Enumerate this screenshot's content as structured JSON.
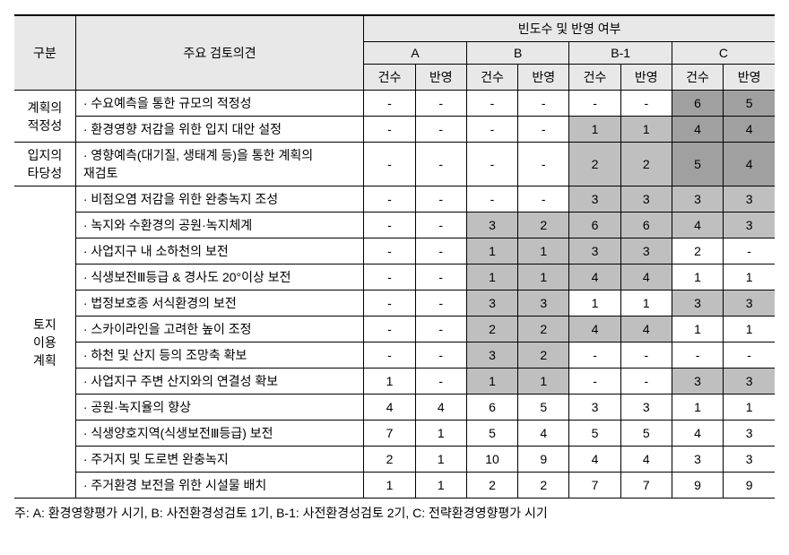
{
  "header": {
    "gubun": "구분",
    "opinion": "주요 검토의견",
    "freq_reflect": "빈도수 및 반영 여부",
    "groups": [
      "A",
      "B",
      "B-1",
      "C"
    ],
    "sub": [
      "건수",
      "반영"
    ]
  },
  "categories": [
    {
      "name": "계획의\n적정성",
      "rowspan": 2
    },
    {
      "name": "입지의\n타당성",
      "rowspan": 1
    },
    {
      "name": "토지\n이용\n계획",
      "rowspan": 12
    }
  ],
  "rows": [
    {
      "cat": 0,
      "label": "· 수요예측을 통한 규모의 적정성",
      "cells": [
        "-",
        "-",
        "-",
        "-",
        "-",
        "-",
        "6",
        "5"
      ],
      "shade": [
        0,
        0,
        0,
        0,
        0,
        0,
        2,
        2
      ]
    },
    {
      "cat": 0,
      "label": "· 환경영향 저감을 위한 입지 대안 설정",
      "cells": [
        "-",
        "-",
        "-",
        "-",
        "1",
        "1",
        "4",
        "4"
      ],
      "shade": [
        0,
        0,
        0,
        0,
        1,
        1,
        2,
        2
      ]
    },
    {
      "cat": 1,
      "label": "· 영향예측(대기질, 생태계 등)을 통한 계획의\n  재검토",
      "cells": [
        "-",
        "-",
        "-",
        "-",
        "2",
        "2",
        "5",
        "4"
      ],
      "shade": [
        0,
        0,
        0,
        0,
        1,
        1,
        2,
        2
      ]
    },
    {
      "cat": 2,
      "label": "· 비점오염 저감을 위한 완충녹지 조성",
      "cells": [
        "-",
        "-",
        "-",
        "-",
        "3",
        "3",
        "3",
        "3"
      ],
      "shade": [
        0,
        0,
        0,
        0,
        1,
        1,
        1,
        1
      ]
    },
    {
      "cat": 2,
      "label": "· 녹지와 수환경의 공원·녹지체계",
      "cells": [
        "-",
        "-",
        "3",
        "2",
        "6",
        "6",
        "4",
        "3"
      ],
      "shade": [
        0,
        0,
        1,
        1,
        1,
        1,
        1,
        1
      ]
    },
    {
      "cat": 2,
      "label": "· 사업지구 내 소하천의 보전",
      "cells": [
        "-",
        "-",
        "1",
        "1",
        "3",
        "3",
        "2",
        "-"
      ],
      "shade": [
        0,
        0,
        1,
        1,
        1,
        1,
        0,
        0
      ]
    },
    {
      "cat": 2,
      "label": "· 식생보전Ⅲ등급 & 경사도 20°이상 보전",
      "cells": [
        "-",
        "-",
        "1",
        "1",
        "4",
        "4",
        "1",
        "1"
      ],
      "shade": [
        0,
        0,
        1,
        1,
        1,
        1,
        0,
        0
      ]
    },
    {
      "cat": 2,
      "label": "· 법정보호종 서식환경의 보전",
      "cells": [
        "-",
        "-",
        "3",
        "3",
        "1",
        "1",
        "3",
        "3"
      ],
      "shade": [
        0,
        0,
        1,
        1,
        0,
        0,
        1,
        1
      ]
    },
    {
      "cat": 2,
      "label": "· 스카이라인을 고려한 높이 조정",
      "cells": [
        "-",
        "-",
        "2",
        "2",
        "4",
        "4",
        "1",
        "1"
      ],
      "shade": [
        0,
        0,
        1,
        1,
        1,
        1,
        0,
        0
      ]
    },
    {
      "cat": 2,
      "label": "· 하천 및 산지 등의 조망축 확보",
      "cells": [
        "-",
        "-",
        "3",
        "2",
        "-",
        "-",
        "-",
        "-"
      ],
      "shade": [
        0,
        0,
        1,
        1,
        0,
        0,
        0,
        0
      ]
    },
    {
      "cat": 2,
      "label": "· 사업지구 주변 산지와의 연결성 확보",
      "cells": [
        "1",
        "-",
        "1",
        "1",
        "-",
        "-",
        "3",
        "3"
      ],
      "shade": [
        0,
        0,
        1,
        1,
        0,
        0,
        1,
        1
      ]
    },
    {
      "cat": 2,
      "label": "· 공원·녹지율의 향상",
      "cells": [
        "4",
        "4",
        "6",
        "5",
        "3",
        "3",
        "1",
        "1"
      ],
      "shade": [
        0,
        0,
        0,
        0,
        0,
        0,
        0,
        0
      ]
    },
    {
      "cat": 2,
      "label": "· 식생양호지역(식생보전Ⅲ등급) 보전",
      "cells": [
        "7",
        "1",
        "5",
        "4",
        "5",
        "5",
        "4",
        "3"
      ],
      "shade": [
        0,
        0,
        0,
        0,
        0,
        0,
        0,
        0
      ]
    },
    {
      "cat": 2,
      "label": "· 주거지 및 도로변 완충녹지",
      "cells": [
        "2",
        "1",
        "10",
        "9",
        "4",
        "4",
        "3",
        "3"
      ],
      "shade": [
        0,
        0,
        0,
        0,
        0,
        0,
        0,
        0
      ]
    },
    {
      "cat": 2,
      "label": "· 주거환경 보전을 위한 시설물 배치",
      "cells": [
        "1",
        "1",
        "2",
        "2",
        "7",
        "7",
        "9",
        "9"
      ],
      "shade": [
        0,
        0,
        0,
        0,
        0,
        0,
        0,
        0
      ]
    }
  ],
  "footnote": "주: A: 환경영향평가 시기, B: 사전환경성검토 1기, B-1: 사전환경성검토 2기, C: 전략환경영향평가 시기",
  "colwidths": {
    "cat": 68,
    "label": 320,
    "cell": 57
  },
  "colors": {
    "shade1": "#bfbfbf",
    "shade2": "#a0a0a0",
    "header_bg": "#e8e8e8"
  },
  "fontsize": 14
}
